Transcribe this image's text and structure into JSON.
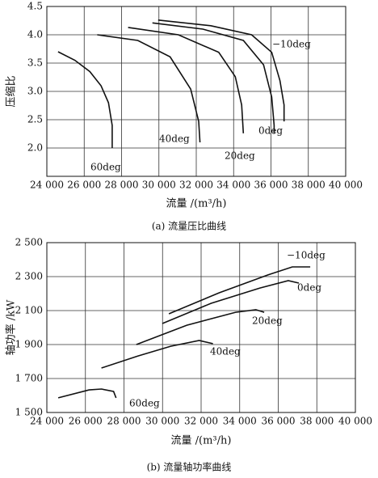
{
  "chart_data": [
    {
      "type": "line",
      "caption": "(a) 流量压比曲线",
      "xlabel": "流量 /(m³/h)",
      "ylabel": "压缩比",
      "xlim": [
        24000,
        40000
      ],
      "xticks": [
        {
          "value": 24000,
          "label": "24 000"
        },
        {
          "value": 26000,
          "label": "26 000"
        },
        {
          "value": 28000,
          "label": "28 000"
        },
        {
          "value": 30000,
          "label": "30 000"
        },
        {
          "value": 32000,
          "label": "32 000"
        },
        {
          "value": 34000,
          "label": "34 000"
        },
        {
          "value": 36000,
          "label": "36 000"
        },
        {
          "value": 38000,
          "label": "38 000"
        },
        {
          "value": 40000,
          "label": "40 000"
        }
      ],
      "ylim": [
        1.5,
        4.5
      ],
      "yticks": [
        {
          "value": 2,
          "label": "2.0"
        },
        2.5,
        {
          "value": 3,
          "label": "3.0"
        },
        3.5,
        {
          "value": 4,
          "label": "4.0"
        },
        4.5
      ],
      "grid": true,
      "series": [
        {
          "name": "−10deg",
          "color": "#111111",
          "x": [
            29960,
            32780,
            34960,
            36040,
            36480,
            36700,
            36700
          ],
          "values": [
            4.26,
            4.16,
            4.0,
            3.69,
            3.19,
            2.76,
            2.47
          ]
        },
        {
          "name": "0deg",
          "color": "#111111",
          "x": [
            29650,
            32350,
            34520,
            35600,
            36040,
            36170,
            36170
          ],
          "values": [
            4.21,
            4.1,
            3.9,
            3.47,
            2.9,
            2.4,
            2.26
          ]
        },
        {
          "name": "20deg",
          "color": "#111111",
          "x": [
            28350,
            31040,
            33200,
            34090,
            34430,
            34520
          ],
          "values": [
            4.13,
            4.0,
            3.69,
            3.26,
            2.76,
            2.26
          ]
        },
        {
          "name": "40deg",
          "color": "#111111",
          "x": [
            26700,
            28870,
            30600,
            31700,
            32130,
            32200
          ],
          "values": [
            4.0,
            3.9,
            3.61,
            3.04,
            2.47,
            2.1
          ]
        },
        {
          "name": "60deg",
          "color": "#111111",
          "x": [
            24600,
            25500,
            26300,
            26900,
            27300,
            27500,
            27500
          ],
          "values": [
            3.7,
            3.55,
            3.35,
            3.1,
            2.8,
            2.4,
            2.0
          ]
        }
      ]
    },
    {
      "type": "line",
      "caption": "(b) 流量轴功率曲线",
      "xlabel": "流量 /(m³/h)",
      "ylabel": "轴功率 /kW",
      "xlim": [
        24000,
        40000
      ],
      "xticks": [
        {
          "value": 24000,
          "label": "24 000"
        },
        {
          "value": 26000,
          "label": "26 000"
        },
        {
          "value": 28000,
          "label": "28 000"
        },
        {
          "value": 30000,
          "label": "30 000"
        },
        {
          "value": 32000,
          "label": "32 000"
        },
        {
          "value": 34000,
          "label": "34 000"
        },
        {
          "value": 36000,
          "label": "36 000"
        },
        {
          "value": 38000,
          "label": "38 000"
        },
        {
          "value": 40000,
          "label": "40 000"
        }
      ],
      "ylim": [
        1500,
        2500
      ],
      "yticks": [
        {
          "value": 1500,
          "label": "1 500"
        },
        {
          "value": 1700,
          "label": "1 700"
        },
        {
          "value": 1900,
          "label": "1 900"
        },
        {
          "value": 2100,
          "label": "2 100"
        },
        {
          "value": 2300,
          "label": "2 300"
        },
        {
          "value": 2500,
          "label": "2 500"
        }
      ],
      "grid": true,
      "series": [
        {
          "name": "−10deg",
          "color": "#111111",
          "x": [
            30330,
            32940,
            35470,
            36730,
            37660
          ],
          "values": [
            2081,
            2205,
            2310,
            2357,
            2357
          ]
        },
        {
          "name": "0deg",
          "color": "#111111",
          "x": [
            29990,
            32520,
            35050,
            36520,
            37070
          ],
          "values": [
            2024,
            2143,
            2233,
            2276,
            2262
          ]
        },
        {
          "name": "20deg",
          "color": "#111111",
          "x": [
            28640,
            31260,
            33790,
            34840,
            35270
          ],
          "values": [
            1900,
            2014,
            2090,
            2105,
            2090
          ]
        },
        {
          "name": "40deg",
          "color": "#111111",
          "x": [
            26830,
            28730,
            30420,
            31900,
            32610
          ],
          "values": [
            1762,
            1833,
            1890,
            1924,
            1905
          ]
        },
        {
          "name": "60deg",
          "color": "#111111",
          "x": [
            24590,
            26190,
            26830,
            27460,
            27590
          ],
          "values": [
            1586,
            1633,
            1638,
            1624,
            1586
          ]
        }
      ]
    }
  ]
}
